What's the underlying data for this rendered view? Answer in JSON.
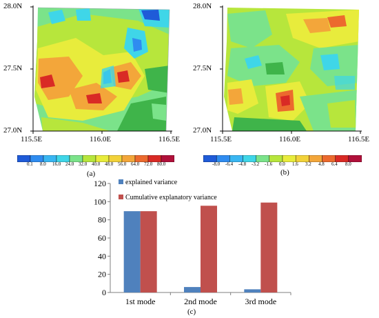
{
  "map_a": {
    "y_ticks": [
      "28.0N",
      "27.5N",
      "27.0N"
    ],
    "x_ticks": [
      "115.5E",
      "116.0E",
      "116.5E"
    ],
    "colorbar_labels": [
      "0.1",
      "8.0",
      "16.0",
      "24.0",
      "32.0",
      "40.0",
      "48.0",
      "56.0",
      "64.0",
      "72.0",
      "80.0"
    ],
    "colorbar_colors": [
      "#1f5bd8",
      "#2f8cf0",
      "#39b6f2",
      "#3fd6e8",
      "#7be38a",
      "#b7e63c",
      "#e8ec3c",
      "#f2d23a",
      "#f3a63a",
      "#ec6a2e",
      "#d92a25",
      "#b0103a"
    ],
    "panel_label": "(a)"
  },
  "map_b": {
    "y_ticks": [
      "28.0N",
      "27.5N",
      "27.0N"
    ],
    "x_ticks": [
      "115.5E",
      "116.0E",
      "116.5E"
    ],
    "colorbar_labels": [
      "-8.0",
      "-6.4",
      "-4.8",
      "-3.2",
      "-1.6",
      "0.0",
      "1.6",
      "3.2",
      "4.8",
      "6.4",
      "8.0"
    ],
    "colorbar_colors": [
      "#1f5bd8",
      "#2f8cf0",
      "#39b6f2",
      "#3fd6e8",
      "#7be38a",
      "#b7e63c",
      "#e8ec3c",
      "#f2d23a",
      "#f3a63a",
      "#ec6a2e",
      "#d92a25",
      "#b0103a"
    ],
    "panel_label": "(b)"
  },
  "chart_data": {
    "type": "bar",
    "categories": [
      "1st mode",
      "2nd mode",
      "3rd mode"
    ],
    "series": [
      {
        "name": "explained variance",
        "values": [
          89.5,
          6,
          3.5
        ],
        "color": "#4f81bd"
      },
      {
        "name": "Cumulative explanatory variance",
        "values": [
          89.5,
          95.5,
          99
        ],
        "color": "#c0504d"
      }
    ],
    "yticks": [
      "0",
      "20",
      "40",
      "60",
      "80",
      "100",
      "120"
    ],
    "ylim": [
      0,
      120
    ],
    "legend_position": "top-left",
    "panel_label": "(c)"
  }
}
